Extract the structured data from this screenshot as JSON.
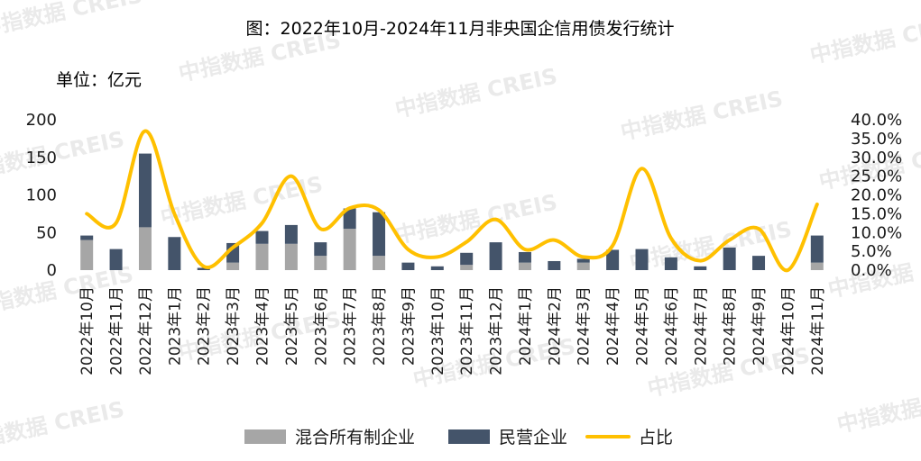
{
  "chart_data": {
    "type": "bar",
    "title": "图：2022年10月-2024年11月非央国企信用债发行统计",
    "unit_label": "单位：亿元",
    "categories": [
      "2022年10月",
      "2022年11月",
      "2022年12月",
      "2023年1月",
      "2023年2月",
      "2023年3月",
      "2023年4月",
      "2023年5月",
      "2023年6月",
      "2023年7月",
      "2023年8月",
      "2023年9月",
      "2023年10月",
      "2023年11月",
      "2023年12月",
      "2024年1月",
      "2024年2月",
      "2024年3月",
      "2024年4月",
      "2024年5月",
      "2024年6月",
      "2024年7月",
      "2024年8月",
      "2024年9月",
      "2024年10月",
      "2024年11月"
    ],
    "series": [
      {
        "name": "混合所有制企业",
        "type": "bar",
        "axis": "left",
        "color": "#a6a6a6",
        "values": [
          40,
          0,
          57,
          0,
          0,
          10,
          35,
          35,
          19,
          55,
          19,
          0,
          0,
          7,
          0,
          10,
          0,
          10,
          0,
          0,
          0,
          0,
          0,
          0,
          0,
          10
        ]
      },
      {
        "name": "民营企业",
        "type": "bar",
        "axis": "left",
        "color": "#44546a",
        "values": [
          6,
          28,
          98,
          44,
          3,
          26,
          17,
          25,
          18,
          27,
          58,
          10,
          5,
          16,
          37,
          14,
          12,
          5,
          27,
          28,
          17,
          5,
          30,
          19,
          0,
          36
        ]
      },
      {
        "name": "占比",
        "type": "line",
        "axis": "right",
        "color": "#ffc000",
        "values": [
          15,
          12.5,
          37,
          15,
          1,
          6,
          12.5,
          25,
          11,
          16.5,
          16,
          5.5,
          3.5,
          7.5,
          13.5,
          5.5,
          8,
          3.5,
          6.5,
          27,
          8.5,
          2.5,
          8,
          11,
          0,
          17.5
        ]
      }
    ],
    "y_left": {
      "range": [
        0,
        200
      ],
      "ticks": [
        "0",
        "50",
        "100",
        "150",
        "200"
      ]
    },
    "y_right": {
      "range": [
        0,
        40
      ],
      "ticks": [
        "0.0%",
        "5.0%",
        "10.0%",
        "15.0%",
        "20.0%",
        "25.0%",
        "30.0%",
        "35.0%",
        "40.0%"
      ]
    },
    "grid": false,
    "legend_position": "bottom"
  },
  "watermark": "中指数据 CREIS"
}
